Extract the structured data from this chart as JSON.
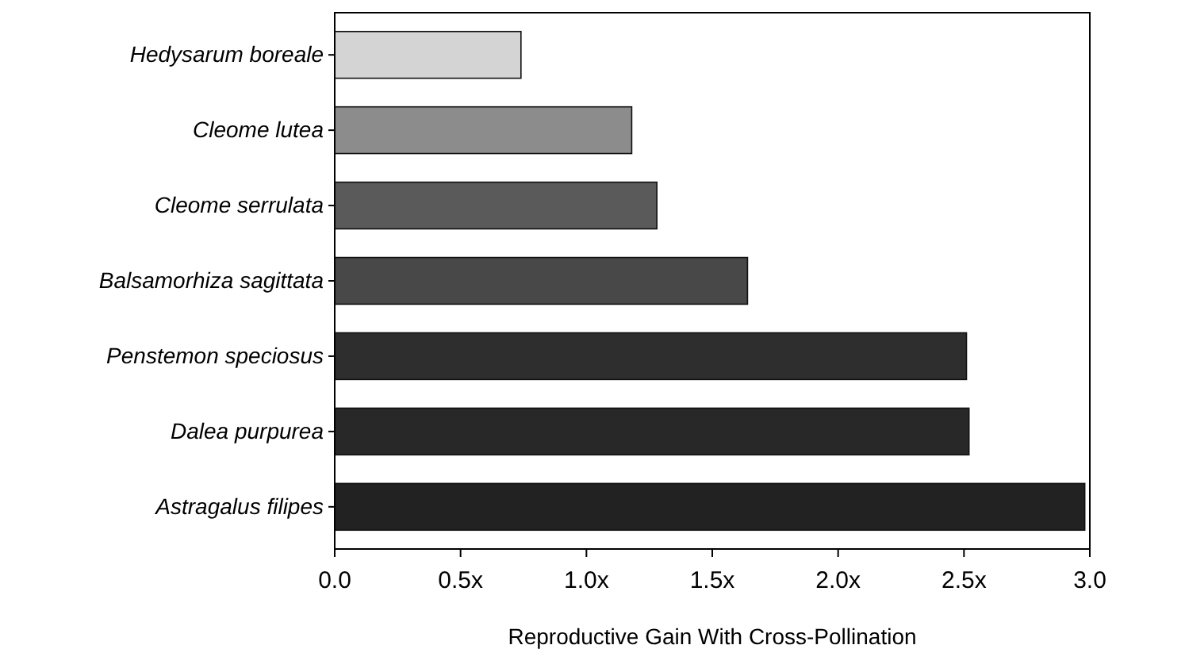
{
  "chart_data": {
    "type": "bar",
    "orientation": "horizontal",
    "xlabel": "Reproductive Gain With Cross-Pollination",
    "categories": [
      "Hedysarum boreale",
      "Cleome lutea",
      "Cleome serrulata",
      "Balsamorhiza sagittata",
      "Penstemon speciosus",
      "Dalea purpurea",
      "Astragalus filipes"
    ],
    "values": [
      0.74,
      1.18,
      1.28,
      1.64,
      2.51,
      2.52,
      2.98
    ],
    "colors": [
      "#d4d4d4",
      "#8c8c8c",
      "#5a5a5a",
      "#484848",
      "#2e2e2e",
      "#282828",
      "#222222"
    ],
    "xlim": [
      0,
      3
    ],
    "xticks": [
      {
        "value": 0,
        "label": "0.0"
      },
      {
        "value": 0.5,
        "label": "0.5x"
      },
      {
        "value": 1,
        "label": "1.0x"
      },
      {
        "value": 1.5,
        "label": "1.5x"
      },
      {
        "value": 2,
        "label": "2.0x"
      },
      {
        "value": 2.5,
        "label": "2.5x"
      },
      {
        "value": 3,
        "label": "3.0"
      }
    ],
    "grid": false
  }
}
